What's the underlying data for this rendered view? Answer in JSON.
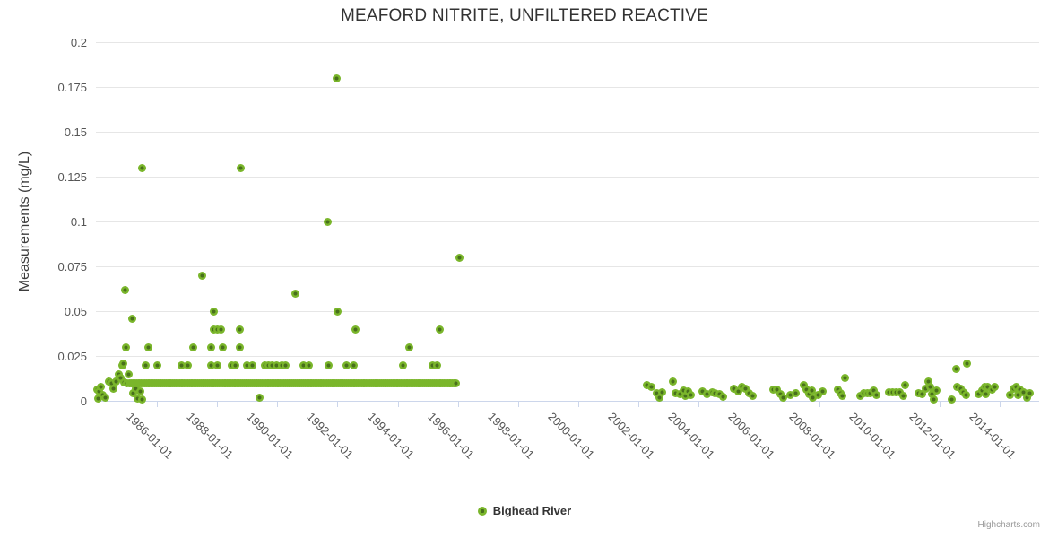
{
  "title": {
    "text": "MEAFORD NITRITE, UNFILTERED REACTIVE"
  },
  "legend": {
    "label": "Bighead River",
    "marker_color": "#7ab62b",
    "marker_center_color": "#48701c"
  },
  "credits": {
    "text": "Highcharts.com"
  },
  "colors": {
    "point_outer": "#7ab62b",
    "point_center": "#48701c",
    "gridline": "#e6e6e6",
    "axis_line": "#ccd6eb",
    "tick_text": "#555555",
    "title_text": "#333333"
  },
  "chart_data": {
    "type": "scatter",
    "title": "MEAFORD NITRITE, UNFILTERED REACTIVE",
    "series_name": "Bighead River",
    "xlabel": "",
    "ylabel": "Measurements (mg/L)",
    "x_unit": "decimal_year",
    "xlim": [
      1984.0,
      2015.35
    ],
    "ylim": [
      0,
      0.2
    ],
    "grid": "horizontal-only",
    "legend_position": "bottom-center",
    "y_ticks": [
      0,
      0.025,
      0.05,
      0.075,
      0.1,
      0.125,
      0.15,
      0.175,
      0.2
    ],
    "y_tick_labels": [
      "0",
      "0.025",
      "0.05",
      "0.075",
      "0.1",
      "0.125",
      "0.15",
      "0.175",
      "0.2"
    ],
    "x_tick_years": [
      1986,
      1988,
      1990,
      1992,
      1994,
      1996,
      1998,
      2000,
      2002,
      2004,
      2006,
      2008,
      2010,
      2012,
      2014
    ],
    "x_tick_labels": [
      "1986-01-01",
      "1988-01-01",
      "1990-01-01",
      "1992-01-01",
      "1994-01-01",
      "1996-01-01",
      "1998-01-01",
      "2000-01-01",
      "2002-01-01",
      "2004-01-01",
      "2006-01-01",
      "2008-01-01",
      "2010-01-01",
      "2012-01-01",
      "2014-01-01"
    ],
    "dense_band": {
      "value": 0.01,
      "start_year": 1985.1,
      "end_year": 1995.95,
      "step_years": 0.055
    },
    "points": [
      [
        1984.02,
        0.0065
      ],
      [
        1984.05,
        0.0015
      ],
      [
        1984.07,
        0.0055
      ],
      [
        1984.15,
        0.008
      ],
      [
        1984.2,
        0.0035
      ],
      [
        1984.3,
        0.002
      ],
      [
        1984.42,
        0.011
      ],
      [
        1984.5,
        0.01
      ],
      [
        1984.55,
        0.007
      ],
      [
        1984.63,
        0.011
      ],
      [
        1984.72,
        0.015
      ],
      [
        1984.8,
        0.013
      ],
      [
        1984.84,
        0.02
      ],
      [
        1984.87,
        0.021
      ],
      [
        1984.9,
        0.0105
      ],
      [
        1984.93,
        0.062
      ],
      [
        1984.96,
        0.03
      ],
      [
        1985.0,
        0.01
      ],
      [
        1985.05,
        0.015
      ],
      [
        1985.17,
        0.046
      ],
      [
        1985.2,
        0.0045
      ],
      [
        1985.3,
        0.007
      ],
      [
        1985.35,
        0.0015
      ],
      [
        1985.45,
        0.0055
      ],
      [
        1985.5,
        0.001
      ],
      [
        1985.5,
        0.13
      ],
      [
        1985.64,
        0.02
      ],
      [
        1985.73,
        0.03
      ],
      [
        1986.0,
        0.02
      ],
      [
        1986.83,
        0.02
      ],
      [
        1987.04,
        0.02
      ],
      [
        1987.2,
        0.03
      ],
      [
        1987.49,
        0.07
      ],
      [
        1987.8,
        0.02
      ],
      [
        1987.8,
        0.03
      ],
      [
        1987.88,
        0.04
      ],
      [
        1987.9,
        0.05
      ],
      [
        1988.0,
        0.02
      ],
      [
        1988.0,
        0.04
      ],
      [
        1988.14,
        0.04
      ],
      [
        1988.2,
        0.03
      ],
      [
        1988.5,
        0.02
      ],
      [
        1988.6,
        0.02
      ],
      [
        1988.77,
        0.04
      ],
      [
        1988.77,
        0.03
      ],
      [
        1988.8,
        0.13
      ],
      [
        1989.0,
        0.02
      ],
      [
        1989.18,
        0.02
      ],
      [
        1989.4,
        0.002
      ],
      [
        1989.6,
        0.02
      ],
      [
        1989.72,
        0.02
      ],
      [
        1989.84,
        0.02
      ],
      [
        1989.97,
        0.02
      ],
      [
        1990.17,
        0.02
      ],
      [
        1990.27,
        0.02
      ],
      [
        1990.6,
        0.06
      ],
      [
        1990.88,
        0.02
      ],
      [
        1991.06,
        0.02
      ],
      [
        1991.68,
        0.1
      ],
      [
        1991.71,
        0.02
      ],
      [
        1991.98,
        0.18
      ],
      [
        1992.0,
        0.05
      ],
      [
        1992.31,
        0.02
      ],
      [
        1992.55,
        0.02
      ],
      [
        1992.6,
        0.04
      ],
      [
        1994.18,
        0.02
      ],
      [
        1994.4,
        0.03
      ],
      [
        1995.15,
        0.02
      ],
      [
        1995.3,
        0.02
      ],
      [
        1995.4,
        0.04
      ],
      [
        1996.06,
        0.08
      ],
      [
        2002.28,
        0.009
      ],
      [
        2002.43,
        0.008
      ],
      [
        2002.6,
        0.0045
      ],
      [
        2002.7,
        0.002
      ],
      [
        2002.8,
        0.005
      ],
      [
        2003.14,
        0.011
      ],
      [
        2003.23,
        0.0045
      ],
      [
        2003.38,
        0.004
      ],
      [
        2003.5,
        0.006
      ],
      [
        2003.56,
        0.003
      ],
      [
        2003.65,
        0.0055
      ],
      [
        2003.74,
        0.0035
      ],
      [
        2004.13,
        0.0055
      ],
      [
        2004.28,
        0.004
      ],
      [
        2004.46,
        0.005
      ],
      [
        2004.55,
        0.0045
      ],
      [
        2004.7,
        0.004
      ],
      [
        2004.82,
        0.0025
      ],
      [
        2005.17,
        0.007
      ],
      [
        2005.32,
        0.0055
      ],
      [
        2005.44,
        0.008
      ],
      [
        2005.56,
        0.007
      ],
      [
        2005.68,
        0.0045
      ],
      [
        2005.8,
        0.003
      ],
      [
        2006.48,
        0.0065
      ],
      [
        2006.6,
        0.0065
      ],
      [
        2006.72,
        0.004
      ],
      [
        2006.81,
        0.002
      ],
      [
        2007.05,
        0.0035
      ],
      [
        2007.23,
        0.0045
      ],
      [
        2007.49,
        0.009
      ],
      [
        2007.58,
        0.0065
      ],
      [
        2007.67,
        0.004
      ],
      [
        2007.76,
        0.006
      ],
      [
        2007.79,
        0.002
      ],
      [
        2007.97,
        0.0035
      ],
      [
        2008.12,
        0.0055
      ],
      [
        2008.62,
        0.0065
      ],
      [
        2008.7,
        0.0045
      ],
      [
        2008.78,
        0.003
      ],
      [
        2008.86,
        0.013
      ],
      [
        2009.37,
        0.003
      ],
      [
        2009.49,
        0.0045
      ],
      [
        2009.6,
        0.0045
      ],
      [
        2009.7,
        0.0045
      ],
      [
        2009.81,
        0.006
      ],
      [
        2009.9,
        0.0035
      ],
      [
        2010.32,
        0.005
      ],
      [
        2010.44,
        0.005
      ],
      [
        2010.56,
        0.005
      ],
      [
        2010.68,
        0.005
      ],
      [
        2010.8,
        0.003
      ],
      [
        2010.85,
        0.009
      ],
      [
        2011.3,
        0.0045
      ],
      [
        2011.42,
        0.004
      ],
      [
        2011.53,
        0.007
      ],
      [
        2011.62,
        0.011
      ],
      [
        2011.68,
        0.008
      ],
      [
        2011.74,
        0.004
      ],
      [
        2011.8,
        0.001
      ],
      [
        2011.9,
        0.006
      ],
      [
        2012.4,
        0.001
      ],
      [
        2012.55,
        0.018
      ],
      [
        2012.58,
        0.008
      ],
      [
        2012.7,
        0.007
      ],
      [
        2012.79,
        0.005
      ],
      [
        2012.88,
        0.0035
      ],
      [
        2012.9,
        0.021
      ],
      [
        2013.3,
        0.004
      ],
      [
        2013.42,
        0.006
      ],
      [
        2013.5,
        0.008
      ],
      [
        2013.55,
        0.004
      ],
      [
        2013.6,
        0.008
      ],
      [
        2013.75,
        0.0065
      ],
      [
        2013.85,
        0.008
      ],
      [
        2014.35,
        0.0035
      ],
      [
        2014.45,
        0.007
      ],
      [
        2014.55,
        0.008
      ],
      [
        2014.62,
        0.0035
      ],
      [
        2014.68,
        0.0065
      ],
      [
        2014.8,
        0.005
      ],
      [
        2014.9,
        0.002
      ],
      [
        2015.0,
        0.0045
      ]
    ]
  }
}
